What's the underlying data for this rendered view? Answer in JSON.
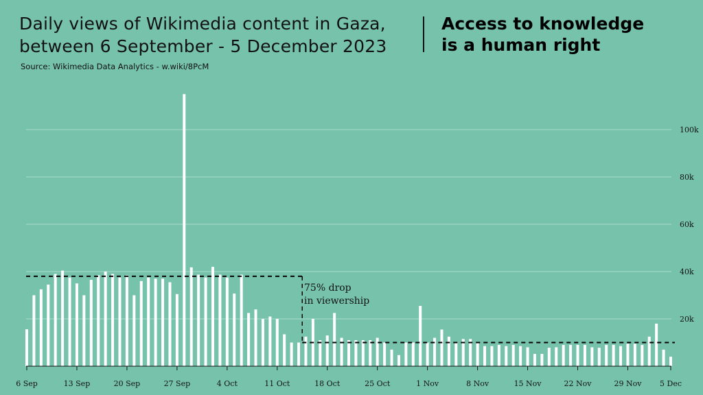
{
  "title": {
    "line1": "Daily views of Wikimedia content in Gaza,",
    "line2": "between 6 September - 5 December 2023"
  },
  "source": "Source: Wikimedia Data Analytics - w.wiki/8PcM",
  "headline": {
    "line1": "Access to knowledge",
    "line2": "is a human right"
  },
  "colors": {
    "background": "#77c2ab",
    "bar": "#ffffff",
    "gridline": "#a8dccb",
    "text": "#111111"
  },
  "chart_data": {
    "type": "bar",
    "title": "Daily views of Wikimedia content in Gaza, between 6 September - 5 December 2023",
    "xlabel": "",
    "ylabel": "",
    "ylim": [
      0,
      115000
    ],
    "y_ticks": [
      {
        "value": 20000,
        "label": "20k"
      },
      {
        "value": 40000,
        "label": "40k"
      },
      {
        "value": 60000,
        "label": "60k"
      },
      {
        "value": 80000,
        "label": "80k"
      },
      {
        "value": 100000,
        "label": "100k"
      }
    ],
    "x_ticks": [
      {
        "index": 0,
        "label": "6 Sep"
      },
      {
        "index": 7,
        "label": "13 Sep"
      },
      {
        "index": 14,
        "label": "20 Sep"
      },
      {
        "index": 21,
        "label": "27 Sep"
      },
      {
        "index": 28,
        "label": "4 Oct"
      },
      {
        "index": 35,
        "label": "11 Oct"
      },
      {
        "index": 42,
        "label": "18 Oct"
      },
      {
        "index": 49,
        "label": "25 Oct"
      },
      {
        "index": 56,
        "label": "1 Nov"
      },
      {
        "index": 63,
        "label": "8 Nov"
      },
      {
        "index": 70,
        "label": "15 Nov"
      },
      {
        "index": 77,
        "label": "22 Nov"
      },
      {
        "index": 84,
        "label": "29 Nov"
      },
      {
        "index": 90,
        "label": "5 Dec"
      }
    ],
    "categories": [
      "2023-09-06",
      "2023-09-07",
      "2023-09-08",
      "2023-09-09",
      "2023-09-10",
      "2023-09-11",
      "2023-09-12",
      "2023-09-13",
      "2023-09-14",
      "2023-09-15",
      "2023-09-16",
      "2023-09-17",
      "2023-09-18",
      "2023-09-19",
      "2023-09-20",
      "2023-09-21",
      "2023-09-22",
      "2023-09-23",
      "2023-09-24",
      "2023-09-25",
      "2023-09-26",
      "2023-09-27",
      "2023-09-28",
      "2023-09-29",
      "2023-09-30",
      "2023-10-01",
      "2023-10-02",
      "2023-10-03",
      "2023-10-04",
      "2023-10-05",
      "2023-10-06",
      "2023-10-07",
      "2023-10-08",
      "2023-10-09",
      "2023-10-10",
      "2023-10-11",
      "2023-10-12",
      "2023-10-13",
      "2023-10-14",
      "2023-10-15",
      "2023-10-16",
      "2023-10-17",
      "2023-10-18",
      "2023-10-19",
      "2023-10-20",
      "2023-10-21",
      "2023-10-22",
      "2023-10-23",
      "2023-10-24",
      "2023-10-25",
      "2023-10-26",
      "2023-10-27",
      "2023-10-28",
      "2023-10-29",
      "2023-10-30",
      "2023-10-31",
      "2023-11-01",
      "2023-11-02",
      "2023-11-03",
      "2023-11-04",
      "2023-11-05",
      "2023-11-06",
      "2023-11-07",
      "2023-11-08",
      "2023-11-09",
      "2023-11-10",
      "2023-11-11",
      "2023-11-12",
      "2023-11-13",
      "2023-11-14",
      "2023-11-15",
      "2023-11-16",
      "2023-11-17",
      "2023-11-18",
      "2023-11-19",
      "2023-11-20",
      "2023-11-21",
      "2023-11-22",
      "2023-11-23",
      "2023-11-24",
      "2023-11-25",
      "2023-11-26",
      "2023-11-27",
      "2023-11-28",
      "2023-11-29",
      "2023-11-30",
      "2023-12-01",
      "2023-12-02",
      "2023-12-03",
      "2023-12-04",
      "2023-12-05"
    ],
    "values": [
      15600,
      30000,
      32500,
      34500,
      39000,
      40400,
      37500,
      35000,
      30000,
      36500,
      38500,
      40000,
      39000,
      37500,
      38500,
      30000,
      36000,
      37500,
      37000,
      37000,
      35500,
      30500,
      115000,
      41800,
      38700,
      37500,
      42000,
      38700,
      37500,
      30700,
      38700,
      22500,
      24000,
      20000,
      21000,
      20000,
      13500,
      10000,
      10000,
      12500,
      20000,
      11000,
      13000,
      22500,
      12000,
      11000,
      11000,
      11000,
      11000,
      12000,
      10000,
      7000,
      4700,
      10000,
      10000,
      25500,
      10000,
      12000,
      15500,
      12500,
      10000,
      11500,
      11500,
      10000,
      8500,
      8500,
      9000,
      8500,
      9000,
      8500,
      8000,
      5200,
      5200,
      7800,
      8000,
      9000,
      9000,
      9000,
      9000,
      8000,
      7800,
      9000,
      9000,
      8500,
      9500,
      9500,
      9000,
      12500,
      18000,
      7000,
      4000
    ],
    "reference_lines": [
      {
        "start_index": 0,
        "end_index": 39,
        "value": 38000
      },
      {
        "start_index": 39,
        "end_index": 91,
        "value": 10000
      }
    ],
    "annotation": {
      "line1": "75% drop",
      "line2": "in viewership"
    },
    "grid": true,
    "legend": "none"
  }
}
